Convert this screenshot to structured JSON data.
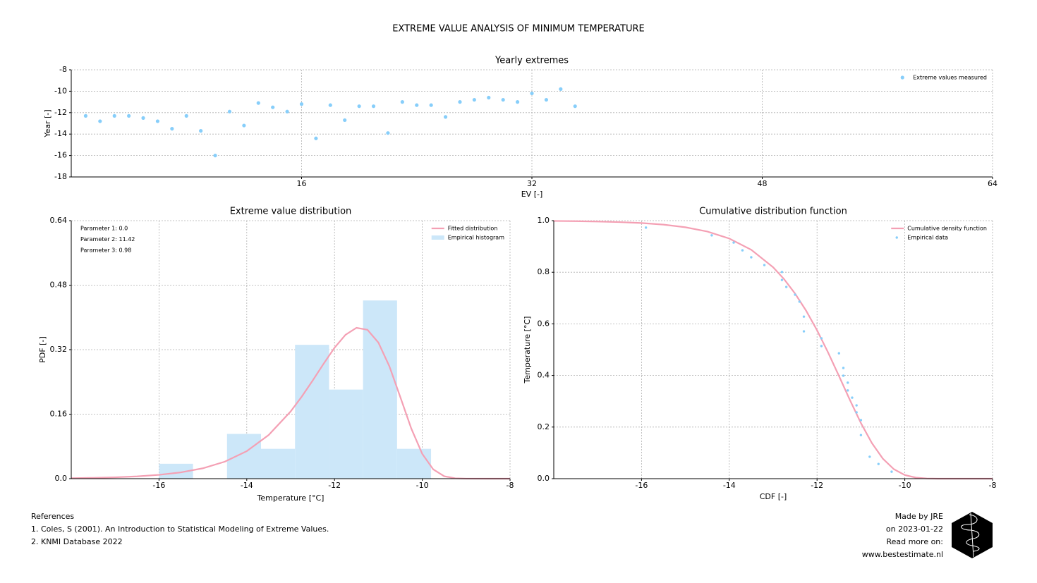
{
  "title": "EXTREME VALUE ANALYSIS OF MINIMUM TEMPERATURE",
  "chart_data": [
    {
      "type": "scatter",
      "title": "Yearly extremes",
      "x_label": "EV [-]",
      "y_label": "Year [-]",
      "xlim": [
        0,
        64
      ],
      "xticks": [
        16,
        32,
        48,
        64
      ],
      "ylim": [
        -18,
        -8
      ],
      "yticks": [
        -8,
        -10,
        -12,
        -14,
        -16,
        -18
      ],
      "grid": true,
      "legend": "upper right",
      "series": [
        {
          "name": "Extreme values measured",
          "color": "#87cefa",
          "x": [
            1,
            2,
            3,
            4,
            5,
            6,
            7,
            8,
            9,
            10,
            11,
            12,
            13,
            14,
            15,
            16,
            17,
            18,
            19,
            20,
            21,
            22,
            23,
            24,
            25,
            26,
            27,
            28,
            29,
            30,
            31,
            32,
            33,
            34,
            35
          ],
          "values": [
            -12.3,
            -12.8,
            -12.3,
            -12.3,
            -12.5,
            -12.8,
            -13.5,
            -12.3,
            -13.7,
            -16.0,
            -11.9,
            -13.2,
            -11.1,
            -11.5,
            -11.9,
            -11.2,
            -14.4,
            -11.3,
            -12.7,
            -11.4,
            -11.4,
            -13.9,
            -11.0,
            -11.3,
            -11.3,
            -12.4,
            -11.0,
            -10.8,
            -10.6,
            -10.8,
            -11.0,
            -10.2,
            -10.8,
            -9.8,
            -11.4
          ]
        }
      ]
    },
    {
      "type": "histogram",
      "title": "Extreme value distribution",
      "x_label": "Temperature [°C]",
      "y_label": "PDF [-]",
      "xlim": [
        -18,
        -8
      ],
      "xticks": [
        -16,
        -14,
        -12,
        -10,
        -8
      ],
      "ylim": [
        0,
        0.64
      ],
      "yticks": [
        {
          "value": 0,
          "label": "0.0"
        },
        0.16,
        0.32,
        0.48,
        0.64
      ],
      "grid": true,
      "legend": "upper right",
      "annotations": [
        "Parameter 1: 0.0",
        "Parameter 2: 11.42",
        "Parameter 3: 0.98"
      ],
      "series": [
        {
          "name": "Fitted distribution",
          "type": "line",
          "color": "#f4a0b4",
          "x": [
            -18,
            -17.5,
            -17,
            -16.5,
            -16,
            -15.5,
            -15,
            -14.5,
            -14,
            -13.5,
            -13,
            -12.75,
            -12.5,
            -12.25,
            -12,
            -11.75,
            -11.5,
            -11.25,
            -11,
            -10.75,
            -10.5,
            -10.25,
            -10,
            -9.75,
            -9.5,
            -9.25,
            -9,
            -8.5,
            -8
          ],
          "values": [
            0.0012,
            0.0021,
            0.0034,
            0.0057,
            0.0095,
            0.0156,
            0.0258,
            0.0422,
            0.0683,
            0.1084,
            0.1667,
            0.2031,
            0.2431,
            0.2849,
            0.3247,
            0.3568,
            0.3742,
            0.3694,
            0.3375,
            0.2788,
            0.2022,
            0.1242,
            0.0614,
            0.023,
            0.006,
            0.001,
            0.0001,
            0,
            0
          ]
        },
        {
          "name": "Empirical histogram",
          "type": "histogram",
          "color": "#cce7f9",
          "bins": [
            -16.0,
            -15.225,
            -14.45,
            -13.675,
            -12.9,
            -12.125,
            -11.35,
            -10.575,
            -9.8
          ],
          "values": [
            0.037,
            0,
            0.111,
            0.074,
            0.332,
            0.221,
            0.442,
            0.074
          ]
        }
      ]
    },
    {
      "type": "line",
      "title": "Cumulative distribution function",
      "x_label": "CDF [-]",
      "y_label": "Temperature [°C]",
      "xlim": [
        -18,
        -8
      ],
      "xticks": [
        -16,
        -14,
        -12,
        -10,
        -8
      ],
      "ylim": [
        0,
        1
      ],
      "yticks": [
        {
          "value": 0,
          "label": "0.0"
        },
        0.2,
        0.4,
        0.6,
        0.8,
        {
          "value": 1,
          "label": "1.0"
        }
      ],
      "grid": true,
      "legend": "upper right",
      "series": [
        {
          "name": "Cumulative density function",
          "type": "line",
          "color": "#f4a0b4",
          "x": [
            -18,
            -17.5,
            -17,
            -16.5,
            -16,
            -15.5,
            -15,
            -14.5,
            -14,
            -13.5,
            -13,
            -12.75,
            -12.5,
            -12.25,
            -12,
            -11.75,
            -11.5,
            -11.25,
            -11,
            -10.75,
            -10.5,
            -10.25,
            -10,
            -9.75,
            -9.5,
            -9.25,
            -9,
            -8.5,
            -8
          ],
          "values": [
            0.9988,
            0.998,
            0.9966,
            0.9944,
            0.9907,
            0.9846,
            0.9744,
            0.9578,
            0.9307,
            0.8872,
            0.8192,
            0.7731,
            0.7173,
            0.6513,
            0.5751,
            0.4896,
            0.3979,
            0.3044,
            0.2155,
            0.1379,
            0.0775,
            0.0369,
            0.0141,
            0.0041,
            0.0008,
            0.0001,
            0,
            0,
            0
          ]
        },
        {
          "name": "Empirical data",
          "type": "scatter",
          "color": "#87cefa",
          "x": [
            -15.9,
            -14.4,
            -13.9,
            -13.7,
            -13.5,
            -13.2,
            -12.8,
            -12.8,
            -12.7,
            -12.5,
            -12.4,
            -12.3,
            -12.3,
            -11.9,
            -11.9,
            -11.5,
            -11.4,
            -11.4,
            -11.3,
            -11.3,
            -11.2,
            -11.1,
            -11.1,
            -11.0,
            -11.0,
            -10.8,
            -10.6,
            -10.3
          ],
          "values": [
            0.973,
            0.943,
            0.915,
            0.885,
            0.858,
            0.828,
            0.801,
            0.77,
            0.743,
            0.713,
            0.686,
            0.628,
            0.571,
            0.544,
            0.514,
            0.486,
            0.429,
            0.399,
            0.372,
            0.342,
            0.314,
            0.284,
            0.257,
            0.227,
            0.169,
            0.085,
            0.057,
            0.027
          ]
        }
      ]
    }
  ],
  "references": {
    "title": "References",
    "items": [
      "1. Coles, S (2001). An Introduction to Statistical Modeling of Extreme Values.",
      "2. KNMI Database 2022"
    ]
  },
  "credits": [
    "Made by JRE",
    "on 2023-01-22",
    "Read more on:",
    "www.bestestimate.nl"
  ]
}
